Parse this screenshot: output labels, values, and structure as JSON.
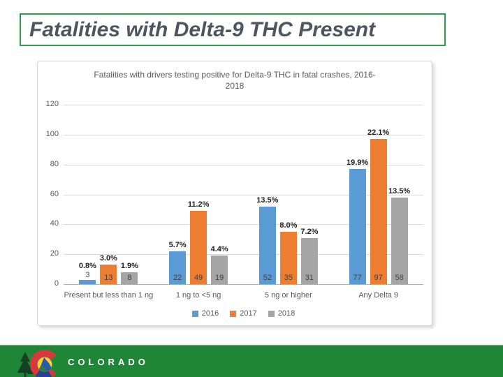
{
  "slide": {
    "title": "Fatalities with Delta-9 THC Present",
    "footer_brand": "COLORADO"
  },
  "colors": {
    "title_border_green": "#2d9e4f",
    "footer_green": "#1e8636",
    "series_2016_blue": "#5B9BD5",
    "series_2017_orange": "#ED7D31",
    "series_2018_gray": "#A5A5A5",
    "axis_text_gray": "#595959",
    "gridline_gray": "#d9d9d9"
  },
  "chart_data": {
    "type": "bar",
    "title": "Fatalities with drivers testing positive for Delta-9 THC in fatal crashes, 2016-2018",
    "title_lines": [
      "Fatalities with drivers testing positive for Delta-9 THC in fatal crashes, 2016-",
      "2018"
    ],
    "categories": [
      "Present but less than 1 ng",
      "1 ng to <5 ng",
      "5 ng or higher",
      "Any Delta 9"
    ],
    "series": [
      {
        "name": "2016",
        "color": "#5B9BD5",
        "values": [
          3,
          22,
          52,
          77
        ],
        "percent_labels": [
          "0.8%",
          "5.7%",
          "13.5%",
          "19.9%"
        ]
      },
      {
        "name": "2017",
        "color": "#ED7D31",
        "values": [
          13,
          49,
          35,
          97
        ],
        "percent_labels": [
          "3.0%",
          "11.2%",
          "8.0%",
          "22.1%"
        ]
      },
      {
        "name": "2018",
        "color": "#A5A5A5",
        "values": [
          8,
          19,
          31,
          58
        ],
        "percent_labels": [
          "1.9%",
          "4.4%",
          "7.2%",
          "13.5%"
        ]
      }
    ],
    "xlabel": "",
    "ylabel": "",
    "ylim": [
      0,
      120
    ],
    "yticks": [
      0,
      20,
      40,
      60,
      80,
      100,
      120
    ],
    "grid": true,
    "legend": [
      "2016",
      "2017",
      "2018"
    ],
    "legend_position": "bottom"
  }
}
